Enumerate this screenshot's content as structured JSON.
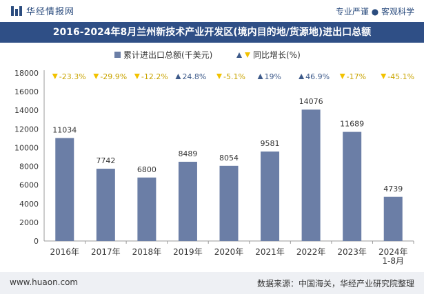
{
  "header": {
    "brand": "华经情报网",
    "slogan": "专业严谨 ● 客观科学"
  },
  "chart_data": {
    "type": "bar",
    "title": "2016-2024年8月兰州新技术产业开发区(境内目的地/货源地)进出口总额",
    "categories": [
      "2016年",
      "2017年",
      "2018年",
      "2019年",
      "2020年",
      "2021年",
      "2022年",
      "2023年",
      "2024年\n1-8月"
    ],
    "series": [
      {
        "name": "累计进出口总额(千美元)",
        "values": [
          11034,
          7742,
          6800,
          8489,
          8054,
          9581,
          14076,
          11689,
          4739
        ]
      }
    ],
    "growth": {
      "name": "同比增长(%)",
      "labels": [
        "-23.3%",
        "-29.9%",
        "-12.2%",
        "24.8%",
        "-5.1%",
        "19%",
        "46.9%",
        "-17%",
        "-45.1%"
      ],
      "direction": [
        "down",
        "down",
        "down",
        "up",
        "down",
        "up",
        "up",
        "down",
        "down"
      ]
    },
    "yticks": [
      "0",
      "2000",
      "4000",
      "6000",
      "8000",
      "10000",
      "12000",
      "14000",
      "16000",
      "18000"
    ],
    "ylim": [
      0,
      18000
    ],
    "colors": {
      "bar": "#6b7ea6",
      "up": "#3d5a8a",
      "down": "#f2c200",
      "title_bg": "#2f4f86"
    },
    "legend_position": "top"
  },
  "footer": {
    "website": "www.huaon.com",
    "source": "数据来源：中国海关，华经产业研究院整理"
  }
}
